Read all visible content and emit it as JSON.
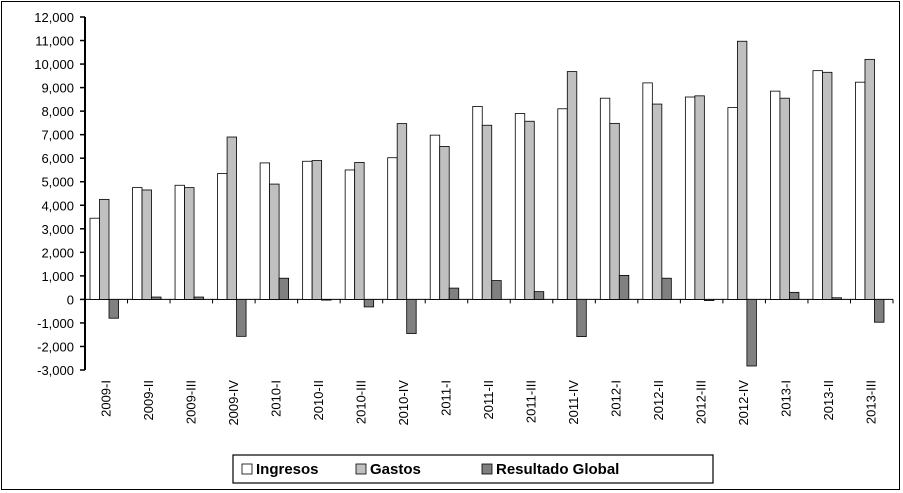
{
  "chart_data": {
    "type": "bar",
    "title": "",
    "xlabel": "",
    "ylabel": "",
    "ylim": [
      -3000,
      12000
    ],
    "yticks": [
      12000,
      11000,
      10000,
      9000,
      8000,
      7000,
      6000,
      5000,
      4000,
      3000,
      2000,
      1000,
      0,
      -1000,
      -2000,
      -3000
    ],
    "ytick_labels": [
      "12,000",
      "11,000",
      "10,000",
      "9,000",
      "8,000",
      "7,000",
      "6,000",
      "5,000",
      "4,000",
      "3,000",
      "2,000",
      "1,000",
      "0",
      "-1,000",
      "-2,000",
      "-3,000"
    ],
    "categories": [
      "2009-I",
      "2009-II",
      "2009-III",
      "2009-IV",
      "2010-I",
      "2010-II",
      "2010-III",
      "2010-IV",
      "2011-I",
      "2011-II",
      "2011-III",
      "2011-IV",
      "2012-I",
      "2012-II",
      "2012-III",
      "2012-IV",
      "2013-I",
      "2013-II",
      "2013-III"
    ],
    "series": [
      {
        "name": "Ingresos",
        "color": "#ffffff",
        "values": [
          3450,
          4750,
          4850,
          5350,
          5800,
          5870,
          5500,
          6020,
          6980,
          8200,
          7900,
          8100,
          8550,
          9200,
          8600,
          8150,
          8850,
          9720,
          9230
        ]
      },
      {
        "name": "Gastos",
        "color": "#c0c0c0",
        "values": [
          4250,
          4650,
          4750,
          6900,
          4900,
          5900,
          5820,
          7470,
          6500,
          7400,
          7570,
          9680,
          7480,
          8300,
          8650,
          10970,
          8550,
          9650,
          10200
        ]
      },
      {
        "name": "Resultado Global",
        "color": "#808080",
        "values": [
          -800,
          100,
          100,
          -1570,
          900,
          -30,
          -320,
          -1450,
          480,
          800,
          330,
          -1580,
          1020,
          900,
          -50,
          -2830,
          300,
          70,
          -970
        ]
      }
    ],
    "grid": false,
    "legend": "bottom"
  }
}
